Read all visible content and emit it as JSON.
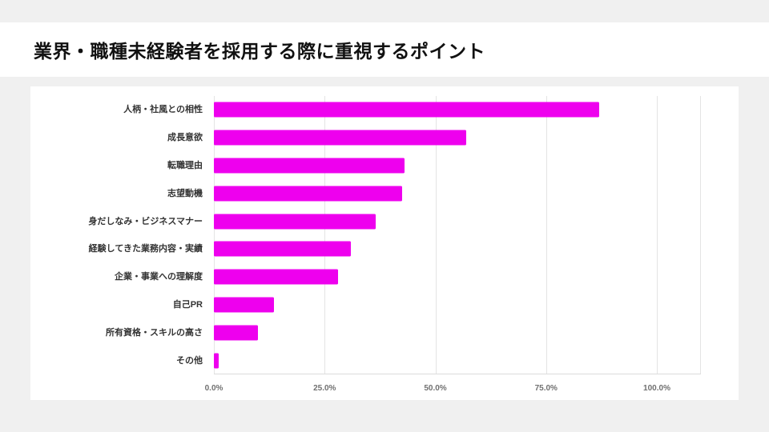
{
  "title": "業界・職種未経験者を採用する際に重視するポイント",
  "colors": {
    "page_bg": "#f0f0f0",
    "header_bg": "#ffffff",
    "card_bg": "#ffffff",
    "bar": "#ee00ee",
    "grid": "#e4e4e4",
    "category_label": "#333333",
    "tick_label": "#707070"
  },
  "chart_data": {
    "type": "bar",
    "orientation": "horizontal",
    "title": "業界・職種未経験者を採用する際に重視するポイント",
    "categories": [
      "人柄・社風との相性",
      "成長意欲",
      "転職理由",
      "志望動機",
      "身だしなみ・ビジネスマナー",
      "経験してきた業務内容・実績",
      "企業・事業への理解度",
      "自己PR",
      "所有資格・スキルの高さ",
      "その他"
    ],
    "values": [
      87,
      57,
      43,
      42.5,
      36.5,
      31,
      28,
      13.5,
      10,
      1
    ],
    "unit": "%",
    "xlim": [
      0,
      100
    ],
    "x_ticks": [
      "0.0%",
      "25.0%",
      "50.0%",
      "75.0%",
      "100.0%"
    ],
    "x_tick_values": [
      0,
      25,
      50,
      75,
      100
    ],
    "grid": true,
    "legend": false,
    "xlabel": "",
    "ylabel": ""
  }
}
